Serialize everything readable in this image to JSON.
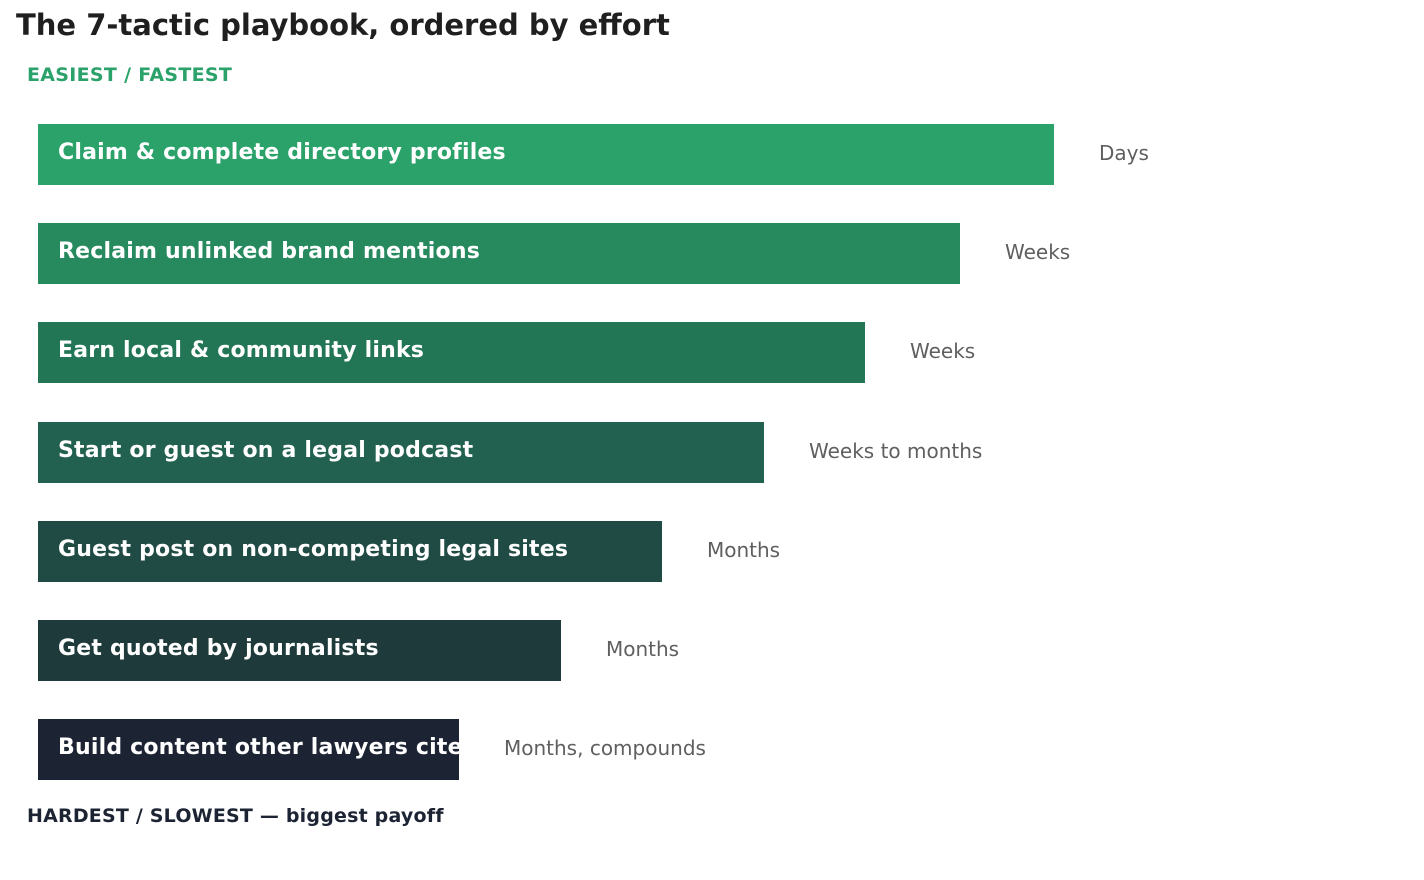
{
  "chart_data": {
    "type": "bar",
    "orientation": "horizontal",
    "title": "The 7-tactic playbook, ordered by effort",
    "top_label": "EASIEST / FASTEST",
    "bottom_label": "HARDEST / SLOWEST — biggest payoff",
    "categories": [
      "Claim & complete directory profiles",
      "Reclaim unlinked brand mentions",
      "Earn local & community links",
      "Start or guest on a legal podcast",
      "Guest post on non-competing legal sites",
      "Get quoted by journalists",
      "Build content other lawyers cite"
    ],
    "values": [
      7,
      6.35,
      5.7,
      5,
      4.3,
      3.6,
      2.9
    ],
    "value_labels": [
      "Days",
      "Weeks",
      "Weeks",
      "Weeks to months",
      "Months",
      "Months",
      "Months, compounds"
    ],
    "colors": [
      "#2ba26a",
      "#278a5f",
      "#237655",
      "#22614f",
      "#204b45",
      "#1f3a3b",
      "#1c2333"
    ],
    "xlim": [
      0,
      7
    ],
    "grid": false,
    "legend": "none"
  }
}
